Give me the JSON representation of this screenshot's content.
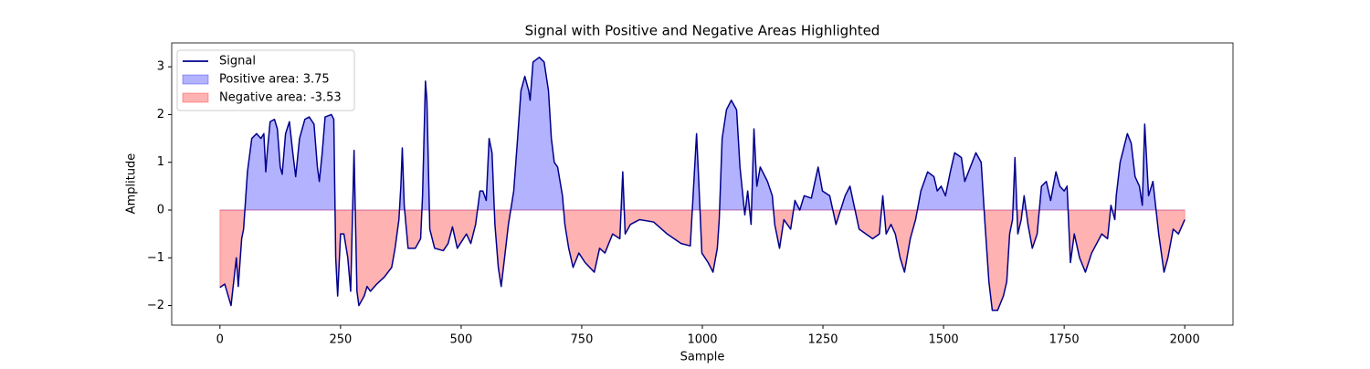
{
  "chart_data": {
    "type": "line",
    "title": "Signal with Positive and Negative Areas Highlighted",
    "x_label": "Sample",
    "y_label": "Amplitude",
    "x": [
      0,
      10,
      23,
      34,
      38,
      45,
      49,
      57,
      66,
      76,
      85,
      91,
      95,
      98,
      104,
      113,
      119,
      125,
      129,
      136,
      144,
      151,
      157,
      165,
      176,
      185,
      195,
      202,
      206,
      212,
      218,
      231,
      236,
      240,
      244,
      250,
      257,
      265,
      271,
      278,
      284,
      288,
      299,
      305,
      312,
      325,
      341,
      356,
      363,
      371,
      375,
      378,
      382,
      390,
      405,
      416,
      420,
      426,
      429,
      435,
      445,
      463,
      473,
      482,
      492,
      511,
      520,
      530,
      539,
      545,
      552,
      558,
      564,
      570,
      577,
      583,
      590,
      598,
      609,
      617,
      624,
      632,
      640,
      643,
      649,
      662,
      672,
      681,
      687,
      693,
      700,
      710,
      715,
      723,
      732,
      744,
      757,
      776,
      787,
      798,
      814,
      829,
      835,
      840,
      851,
      870,
      899,
      927,
      956,
      975,
      988,
      993,
      999,
      1012,
      1022,
      1031,
      1035,
      1041,
      1050,
      1060,
      1071,
      1078,
      1088,
      1094,
      1101,
      1107,
      1113,
      1120,
      1135,
      1145,
      1150,
      1160,
      1169,
      1183,
      1192,
      1202,
      1211,
      1226,
      1240,
      1249,
      1264,
      1277,
      1296,
      1306,
      1325,
      1353,
      1367,
      1374,
      1381,
      1391,
      1400,
      1410,
      1419,
      1431,
      1442,
      1453,
      1467,
      1480,
      1487,
      1495,
      1504,
      1514,
      1523,
      1537,
      1544,
      1567,
      1578,
      1586,
      1594,
      1601,
      1612,
      1624,
      1631,
      1637,
      1643,
      1648,
      1654,
      1661,
      1667,
      1675,
      1684,
      1694,
      1703,
      1713,
      1722,
      1733,
      1741,
      1750,
      1756,
      1763,
      1771,
      1782,
      1794,
      1807,
      1828,
      1840,
      1847,
      1855,
      1858,
      1866,
      1881,
      1889,
      1897,
      1906,
      1912,
      1917,
      1925,
      1934,
      1946,
      1957,
      1965,
      1976,
      1987,
      2000
    ],
    "series": [
      {
        "name": "Signal",
        "color": "#00008b",
        "values": [
          -1.62,
          -1.55,
          -2.0,
          -1.0,
          -1.6,
          -0.6,
          -0.4,
          0.8,
          1.5,
          1.6,
          1.5,
          1.6,
          0.8,
          1.2,
          1.85,
          1.9,
          1.7,
          0.9,
          0.75,
          1.6,
          1.85,
          1.2,
          0.7,
          1.5,
          1.9,
          1.95,
          1.8,
          0.9,
          0.6,
          1.2,
          1.95,
          2.0,
          1.9,
          -1.0,
          -1.8,
          -0.5,
          -0.5,
          -1.0,
          -1.7,
          1.25,
          -1.7,
          -2.0,
          -1.8,
          -1.6,
          -1.7,
          -1.55,
          -1.4,
          -1.2,
          -0.8,
          -0.2,
          0.5,
          1.3,
          0.1,
          -0.8,
          -0.8,
          -0.6,
          0.3,
          2.7,
          2.3,
          -0.4,
          -0.8,
          -0.85,
          -0.7,
          -0.35,
          -0.8,
          -0.5,
          -0.7,
          -0.3,
          0.4,
          0.4,
          0.2,
          1.5,
          1.2,
          -0.3,
          -1.2,
          -1.6,
          -1.0,
          -0.3,
          0.4,
          1.5,
          2.5,
          2.8,
          2.5,
          2.3,
          3.1,
          3.2,
          3.1,
          2.5,
          1.5,
          1.0,
          0.9,
          0.3,
          -0.3,
          -0.8,
          -1.2,
          -0.9,
          -1.1,
          -1.3,
          -0.8,
          -0.9,
          -0.5,
          -0.6,
          0.8,
          -0.5,
          -0.3,
          -0.2,
          -0.25,
          -0.5,
          -0.7,
          -0.75,
          1.6,
          0.5,
          -0.9,
          -1.1,
          -1.3,
          -0.8,
          -0.2,
          1.5,
          2.1,
          2.3,
          2.1,
          0.9,
          -0.1,
          0.4,
          -0.3,
          1.7,
          0.5,
          0.9,
          0.6,
          0.3,
          -0.3,
          -0.8,
          -0.2,
          -0.4,
          0.2,
          0.0,
          0.3,
          0.25,
          0.9,
          0.4,
          0.3,
          -0.3,
          0.3,
          0.5,
          -0.4,
          -0.6,
          -0.5,
          0.3,
          -0.5,
          -0.3,
          -0.5,
          -1.0,
          -1.3,
          -0.6,
          -0.2,
          0.4,
          0.8,
          0.7,
          0.4,
          0.5,
          0.3,
          0.8,
          1.2,
          1.1,
          0.6,
          1.2,
          1.0,
          -0.3,
          -1.5,
          -2.1,
          -2.1,
          -1.8,
          -1.5,
          -0.5,
          -0.2,
          1.1,
          -0.5,
          -0.2,
          0.3,
          -0.3,
          -0.8,
          -0.5,
          0.5,
          0.6,
          0.2,
          0.8,
          0.5,
          0.4,
          0.5,
          -1.1,
          -0.5,
          -1.0,
          -1.3,
          -0.9,
          -0.5,
          -0.6,
          0.1,
          -0.2,
          0.3,
          1.0,
          1.6,
          1.4,
          0.7,
          0.5,
          0.1,
          1.8,
          0.3,
          0.6,
          -0.5,
          -1.3,
          -1.0,
          -0.4,
          -0.5,
          -0.2
        ]
      }
    ],
    "fills": [
      {
        "name": "Positive area: 3.75",
        "color": "#0000ff",
        "alpha": 0.3,
        "where": "positive"
      },
      {
        "name": "Negative area: -3.53",
        "color": "#ff0000",
        "alpha": 0.3,
        "where": "negative"
      }
    ],
    "xlim": [
      -100,
      2100
    ],
    "ylim": [
      -2.41,
      3.5
    ],
    "xticks": [
      0,
      250,
      500,
      750,
      1000,
      1250,
      1500,
      1750,
      2000
    ],
    "yticks": [
      {
        "value": -2,
        "label": "−2"
      },
      {
        "value": -1,
        "label": "−1"
      },
      0,
      1,
      2,
      3
    ],
    "legend": "upper left"
  }
}
